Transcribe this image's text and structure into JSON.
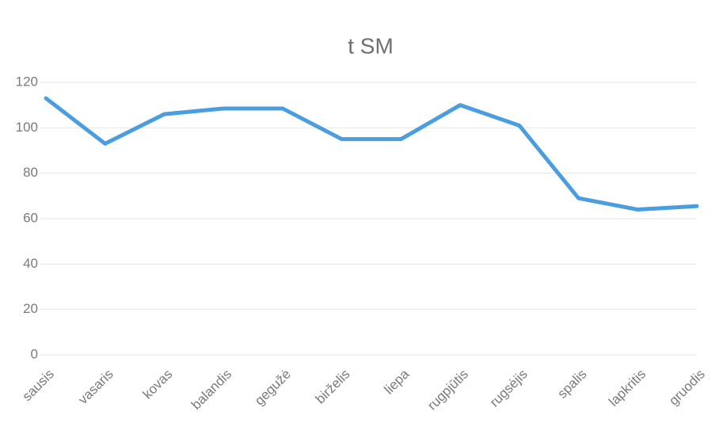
{
  "chart_data": {
    "type": "line",
    "title": "t SM",
    "categories": [
      "sausis",
      "vasaris",
      "kovas",
      "balandis",
      "gegužė",
      "birželis",
      "liepa",
      "rugpjūtis",
      "rugsėjis",
      "spalis",
      "lapkritis",
      "gruodis"
    ],
    "series": [
      {
        "name": "t SM",
        "color": "#4a9ee0",
        "values": [
          113,
          93,
          106,
          108.5,
          108.5,
          95,
          95,
          110,
          101,
          69,
          64,
          65.5
        ]
      }
    ],
    "ylim": [
      0,
      120
    ],
    "yticks": [
      0,
      20,
      40,
      60,
      80,
      100,
      120
    ],
    "grid": true
  }
}
